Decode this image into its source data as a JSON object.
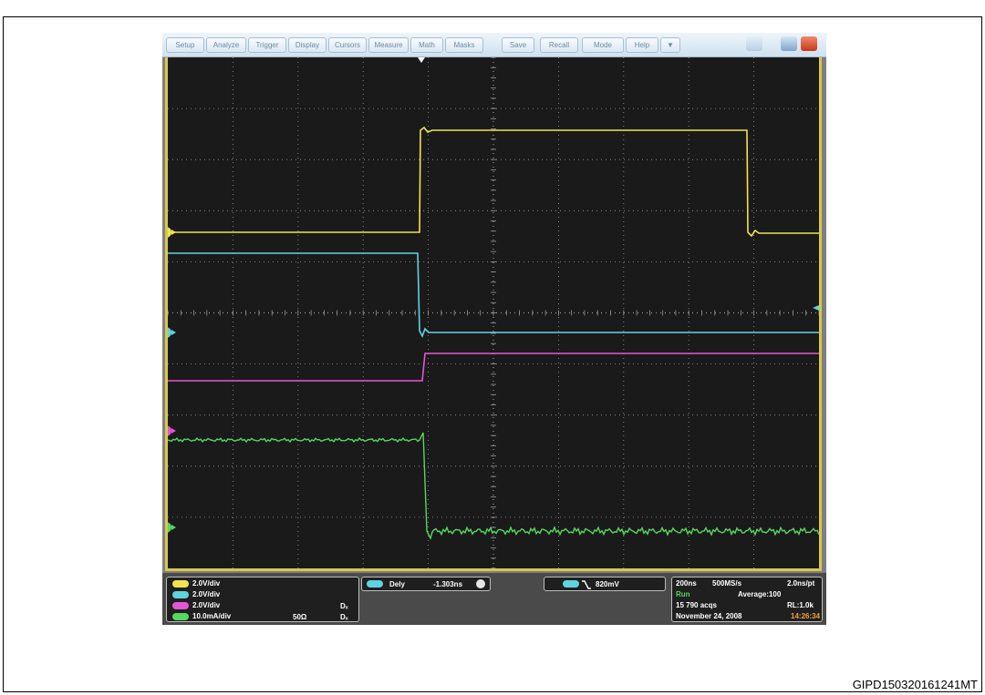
{
  "menu": {
    "items": [
      "Setup",
      "Analyze",
      "Trigger",
      "Display",
      "Cursors",
      "Measure",
      "Math",
      "Masks",
      "Save",
      "Recall",
      "Mode",
      "Help"
    ],
    "dropdown_marker": "▼"
  },
  "colors": {
    "ch1": "#f2e24f",
    "ch2": "#5fd3e0",
    "ch3": "#e455d8",
    "ch4": "#55d85f",
    "grid": "#9a9a9a",
    "background": "#1a1a1a"
  },
  "channels": [
    {
      "label": "2.0V/div"
    },
    {
      "label": "2.0V/div"
    },
    {
      "label": "2.0V/div",
      "extra": "Dₓ"
    },
    {
      "label": "10.0mA/div",
      "impedance": "50Ω",
      "extra": "Dₓ"
    }
  ],
  "delay": {
    "label": "Dely",
    "value": "-1.303ns"
  },
  "trigger_level": {
    "value": "820mV"
  },
  "acquisition": {
    "timebase": "200ns",
    "sample_rate": "500MS/s",
    "resolution": "2.0ns/pt",
    "state": "Run",
    "mode": "Average:100",
    "acqs": "15 790 acqs",
    "record_length": "RL:1.0k",
    "date": "November 24, 2008",
    "time": "14:26:34"
  },
  "caption": "GIPD150320161241MT"
}
